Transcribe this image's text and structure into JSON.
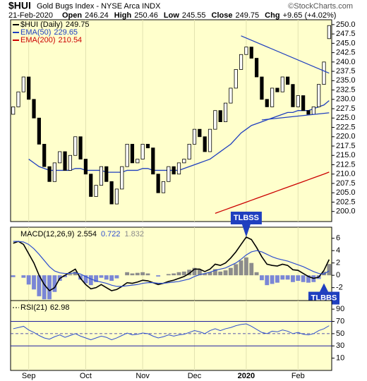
{
  "header": {
    "title": "$HUI",
    "subtitle": "Gold Bugs Index - NYSE Arca INDX",
    "credit": "©StockCharts.com",
    "date": "21-Feb-2020",
    "quote": [
      {
        "label": "Open",
        "value": "246.24"
      },
      {
        "label": "High",
        "value": "250.46"
      },
      {
        "label": "Low",
        "value": "245.55"
      },
      {
        "label": "Close",
        "value": "249.75"
      },
      {
        "label": "Chg",
        "value": "+9.65 (+4.02%)"
      }
    ]
  },
  "chart_data": [
    {
      "type": "candlestick",
      "name": "$HUI (Daily)",
      "background": "#ffffcc",
      "categories": [
        null,
        null,
        null,
        "Sep",
        null,
        null,
        null,
        null,
        null,
        null,
        null,
        null,
        null,
        null,
        "Oct",
        null,
        null,
        null,
        null,
        null,
        null,
        null,
        null,
        null,
        null,
        "Nov",
        null,
        null,
        null,
        null,
        null,
        null,
        null,
        null,
        null,
        "Dec",
        null,
        null,
        null,
        null,
        null,
        null,
        null,
        null,
        null,
        "2020",
        null,
        null,
        null,
        null,
        null,
        null,
        null,
        null,
        null,
        "Feb",
        null,
        null,
        null,
        null,
        null,
        null
      ],
      "open": [
        226,
        228,
        232,
        236,
        230,
        225,
        218,
        212,
        208,
        213,
        216,
        211,
        215,
        220,
        214,
        210,
        204,
        207,
        212,
        208,
        202,
        206,
        212,
        218,
        213,
        214,
        218,
        217,
        210,
        205,
        208,
        212,
        210,
        213,
        214,
        218,
        222,
        220,
        216,
        222,
        227,
        224,
        229,
        233,
        238,
        242,
        244,
        241,
        236,
        230,
        228,
        233,
        232,
        236,
        234,
        228,
        231,
        227,
        226,
        228,
        234,
        246.24
      ],
      "close": [
        228,
        232,
        236,
        230,
        225,
        218,
        212,
        208,
        213,
        216,
        211,
        215,
        220,
        214,
        210,
        204,
        207,
        212,
        208,
        202,
        206,
        212,
        218,
        213,
        214,
        218,
        217,
        210,
        205,
        208,
        212,
        210,
        213,
        214,
        218,
        222,
        220,
        216,
        222,
        227,
        224,
        229,
        233,
        238,
        242,
        244,
        241,
        236,
        230,
        228,
        233,
        232,
        236,
        234,
        228,
        231,
        227,
        226,
        228,
        234,
        240,
        249.75
      ],
      "series": [
        {
          "name": "EMA(50)",
          "color": "#1f3fbf",
          "values": [
            null,
            null,
            null,
            214,
            213,
            212,
            211.5,
            211,
            211,
            211,
            211,
            211,
            211.5,
            211.5,
            211,
            211,
            211,
            211,
            210.5,
            210.5,
            210.5,
            210.5,
            211,
            211,
            211,
            211.5,
            211.5,
            211,
            211,
            211,
            211,
            211,
            211,
            211.5,
            212,
            212.5,
            213,
            213.5,
            214,
            215,
            216,
            217,
            218,
            219.5,
            221,
            222,
            223,
            223.5,
            224,
            224.5,
            225,
            225.5,
            226,
            226.5,
            226.5,
            227,
            227,
            227,
            227.5,
            228,
            228.5,
            229.65
          ]
        },
        {
          "name": "EMA(200)",
          "color": "#cc0000",
          "values": [
            null,
            null,
            null,
            null,
            null,
            null,
            null,
            null,
            null,
            null,
            null,
            null,
            null,
            null,
            null,
            null,
            null,
            null,
            null,
            null,
            null,
            null,
            null,
            null,
            null,
            null,
            null,
            null,
            null,
            null,
            null,
            null,
            null,
            null,
            null,
            null,
            null,
            null,
            null,
            199.5,
            200,
            200.5,
            201,
            201.5,
            202,
            202.5,
            203,
            203.5,
            204,
            204.5,
            205,
            205.5,
            206,
            206.5,
            207,
            207.5,
            208,
            208.5,
            209,
            209.5,
            210,
            210.54
          ]
        }
      ],
      "trendlines": [
        {
          "x": [
            44,
            61
          ],
          "values": [
            247,
            237
          ],
          "color": "#1f3fbf"
        },
        {
          "x": [
            48,
            61
          ],
          "values": [
            224.5,
            226.4
          ],
          "color": "#1f3fbf"
        }
      ],
      "ylim": [
        197.3,
        251.3
      ],
      "yticks": [
        {
          "value": 250,
          "label": "250.0"
        },
        {
          "value": 247.5,
          "label": "247.5"
        },
        {
          "value": 245,
          "label": "245.0"
        },
        {
          "value": 242.5,
          "label": "242.5"
        },
        {
          "value": 240,
          "label": "240.0"
        },
        {
          "value": 237.5,
          "label": "237.5"
        },
        {
          "value": 235,
          "label": "235.0"
        },
        {
          "value": 232.5,
          "label": "232.5"
        },
        {
          "value": 230,
          "label": "230.0"
        },
        {
          "value": 227.5,
          "label": "227.5"
        },
        {
          "value": 225,
          "label": "225.0"
        },
        {
          "value": 222.5,
          "label": "222.5"
        },
        {
          "value": 220,
          "label": "220.0"
        },
        {
          "value": 217.5,
          "label": "217.5"
        },
        {
          "value": 215,
          "label": "215.0"
        },
        {
          "value": 212.5,
          "label": "212.5"
        },
        {
          "value": 210,
          "label": "210.0"
        },
        {
          "value": 207.5,
          "label": "207.5"
        },
        {
          "value": 205,
          "label": "205.0"
        },
        {
          "value": 202.5,
          "label": "202.5"
        },
        {
          "value": 200,
          "label": "200.0"
        }
      ]
    },
    {
      "type": "macd",
      "background": "#ffffcc",
      "series": [
        {
          "name": "MACD(12,26,9)",
          "color": "#000000",
          "values": [
            5.2,
            5.5,
            5,
            3.5,
            2,
            0,
            -1.5,
            -2.5,
            -2,
            -0.5,
            0,
            0.5,
            1,
            -0.5,
            -1.5,
            -2.2,
            -2,
            -1.5,
            -2,
            -2.5,
            -2.3,
            -1.8,
            -1.2,
            -1.3,
            -1.1,
            -0.8,
            -0.9,
            -1.2,
            -1.5,
            -1.3,
            -1,
            -0.8,
            -0.5,
            -0.2,
            0.3,
            1,
            1,
            0.6,
            1,
            1.8,
            1.6,
            2,
            2.8,
            3.8,
            5,
            6.2,
            5.8,
            4.5,
            3,
            1.8,
            1.6,
            1.5,
            1.8,
            1.6,
            0.9,
            0.8,
            0.3,
            -0.2,
            -0.5,
            -0.3,
            0.8,
            2.554
          ]
        },
        {
          "color": "#2f4fcf",
          "values": [
            5.5,
            5.5,
            5.4,
            5,
            4.3,
            3.4,
            2.4,
            1.4,
            0.7,
            0.4,
            0.3,
            0.3,
            0.4,
            0.2,
            -0.2,
            -0.6,
            -0.9,
            -1.1,
            -1.3,
            -1.6,
            -1.8,
            -1.8,
            -1.7,
            -1.6,
            -1.5,
            -1.3,
            -1.2,
            -1.2,
            -1.3,
            -1.3,
            -1.2,
            -1.1,
            -1,
            -0.8,
            -0.6,
            -0.2,
            0.1,
            0.3,
            0.5,
            0.8,
            1,
            1.2,
            1.6,
            2,
            2.6,
            3.3,
            3.8,
            4,
            3.8,
            3.4,
            3,
            2.7,
            2.5,
            2.3,
            2,
            1.7,
            1.4,
            1,
            0.6,
            0.3,
            0.2,
            0.722
          ]
        }
      ],
      "histogram": {
        "positive": "#8c8c8c",
        "negative": "#7a86d6",
        "values": [
          -0.3,
          0,
          -0.4,
          -1.5,
          -2.3,
          -3.4,
          -3.9,
          -3.9,
          -2.7,
          -0.9,
          -0.3,
          0.2,
          0.6,
          -0.7,
          -1.3,
          -1.6,
          -1.1,
          -0.4,
          -0.7,
          -0.9,
          -0.5,
          0,
          0.5,
          0.3,
          0.4,
          0.5,
          0.3,
          0,
          -0.2,
          0,
          0.2,
          0.3,
          0.5,
          0.6,
          0.9,
          1.2,
          0.9,
          0.3,
          0.5,
          1,
          0.6,
          0.8,
          1.2,
          1.8,
          2.4,
          2.9,
          2,
          0.5,
          -0.8,
          -1.6,
          -1.4,
          -1.2,
          -0.7,
          -0.7,
          -1.1,
          -0.9,
          -1.1,
          -1.2,
          -1.1,
          -0.6,
          0.6,
          1.832
        ]
      },
      "annotations": [
        {
          "text": "TLBSS",
          "x": 45,
          "y": 6.2,
          "side": "above"
        },
        {
          "text": "TLBBS",
          "x": 60,
          "y": -1.3,
          "side": "below"
        }
      ],
      "ylim": [
        -4.1,
        7.8
      ],
      "yticks": [
        6,
        4,
        2,
        0,
        -2
      ]
    },
    {
      "type": "rsi",
      "background": "#ffffcc",
      "name": "RSI(21)",
      "color": "#2f4fcf",
      "values": [
        58,
        60,
        62,
        56,
        52,
        47,
        43,
        41,
        45,
        48,
        44,
        47,
        50,
        46,
        43,
        40,
        43,
        46,
        44,
        40,
        43,
        47,
        51,
        48,
        49,
        51,
        50,
        46,
        43,
        45,
        48,
        46,
        48,
        49,
        52,
        55,
        53,
        50,
        55,
        58,
        55,
        58,
        60,
        63,
        65,
        66,
        62,
        57,
        52,
        50,
        54,
        53,
        56,
        54,
        50,
        52,
        49,
        48,
        50,
        55,
        58,
        62.98
      ],
      "levels": [
        70,
        50,
        30
      ],
      "level_color": "#1f1fa0",
      "ylim": [
        -10,
        104
      ],
      "yticks": [
        90,
        70,
        50,
        30,
        10
      ]
    }
  ]
}
